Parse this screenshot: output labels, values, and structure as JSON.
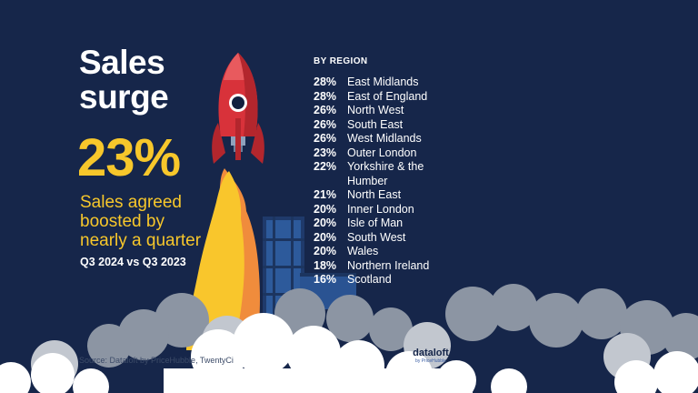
{
  "headline": {
    "line1": "Sales",
    "line2": "surge"
  },
  "stat": {
    "value": "23%",
    "desc_lines": [
      "Sales agreed",
      "boosted by",
      "nearly a quarter"
    ],
    "period": "Q3 2024 vs Q3 2023"
  },
  "regions": {
    "heading": "BY REGION",
    "items": [
      {
        "pct": "28%",
        "name": "East Midlands"
      },
      {
        "pct": "28%",
        "name": "East of England"
      },
      {
        "pct": "26%",
        "name": "North West"
      },
      {
        "pct": "26%",
        "name": "South East"
      },
      {
        "pct": "26%",
        "name": "West Midlands"
      },
      {
        "pct": "23%",
        "name": "Outer London"
      },
      {
        "pct": "22%",
        "name": "Yorkshire & the Humber"
      },
      {
        "pct": "21%",
        "name": "North East"
      },
      {
        "pct": "20%",
        "name": "Inner London"
      },
      {
        "pct": "20%",
        "name": "Isle of Man"
      },
      {
        "pct": "20%",
        "name": "South West"
      },
      {
        "pct": "20%",
        "name": "Wales"
      },
      {
        "pct": "18%",
        "name": "Northern Ireland"
      },
      {
        "pct": "16%",
        "name": "Scotland"
      }
    ]
  },
  "source": "Source: Dataloft by PriceHubble, TwentyCi",
  "logo": {
    "name": "dataloft",
    "sub": "by PriceHubble"
  },
  "colors": {
    "background": "#16264a",
    "accent_yellow": "#f7c72b",
    "rocket_red": "#d8323a",
    "flame_orange": "#f08c3c",
    "smoke_grey": "#8c95a3",
    "cloud_white": "#ffffff"
  }
}
